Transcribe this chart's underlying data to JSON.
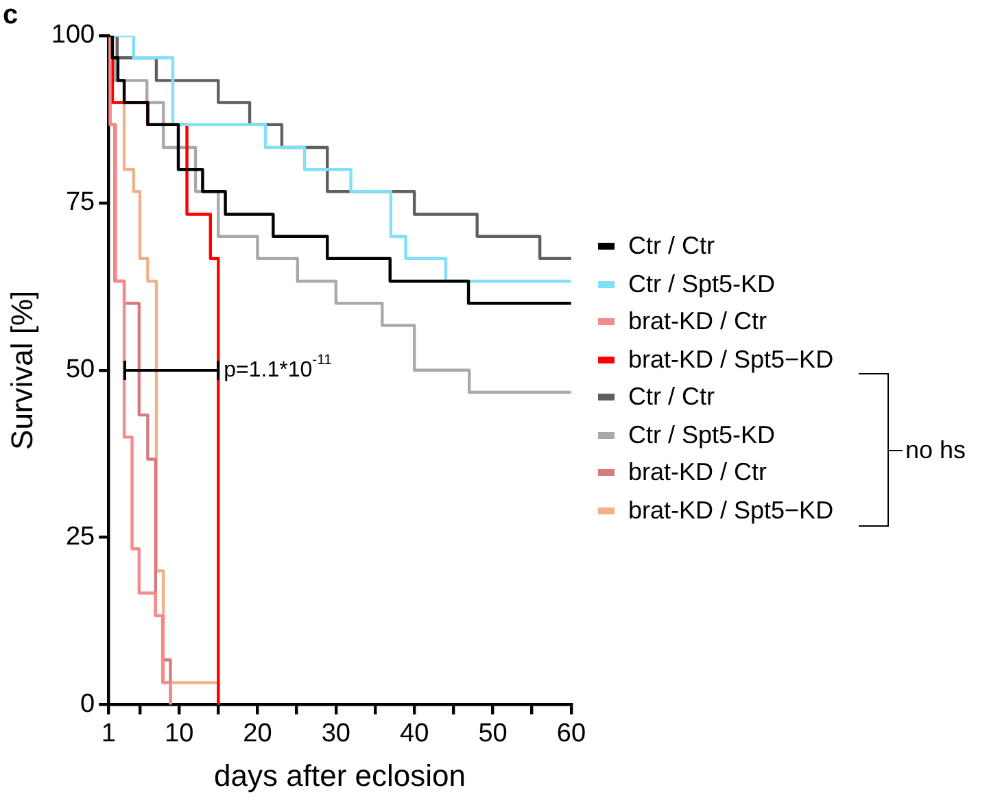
{
  "chart_data": {
    "type": "step",
    "title": "c",
    "xlabel": "days after eclosion",
    "ylabel": "Survival [%]",
    "xlim": [
      1,
      60
    ],
    "xticks": [
      1,
      {
        "value": 5,
        "label": null
      },
      10,
      {
        "value": 15,
        "label": null
      },
      20,
      {
        "value": 25,
        "label": null
      },
      30,
      {
        "value": 35,
        "label": null
      },
      40,
      {
        "value": 45,
        "label": null
      },
      50,
      {
        "value": 55,
        "label": null
      },
      60
    ],
    "ylim": [
      0,
      100
    ],
    "yticks": [
      0,
      25,
      50,
      75,
      100
    ],
    "grid": false,
    "legend": "right",
    "marker": "none",
    "line_style": "solid",
    "annotations": [
      {
        "text": "p=1.1*10$^{-11}$",
        "x": 15,
        "y": 50
      },
      "no hs"
    ],
    "series": [
      {
        "name": "Ctr / Ctr",
        "color": "#000000",
        "x": [
          1,
          1.5,
          2.2,
          3,
          6,
          9.9,
          13,
          15.9,
          22,
          28.9,
          36.9,
          46.9,
          60
        ],
        "values": [
          100,
          96.7,
          93.3,
          90,
          86.7,
          80,
          76.7,
          73.3,
          70,
          66.7,
          63.3,
          60,
          60
        ]
      },
      {
        "name": "Ctr / Spt5-KD",
        "color": "#80e0f8",
        "x": [
          1,
          4.2,
          9.2,
          21,
          26,
          31.9,
          37,
          38.9,
          44,
          60
        ],
        "values": [
          100,
          96.7,
          86.7,
          83.3,
          80,
          76.7,
          70,
          66.7,
          63.3,
          63.3
        ]
      },
      {
        "name": "brat-KD / Ctr",
        "color": "#f48a8a",
        "x": [
          1,
          1.2,
          1.9,
          3,
          4,
          4.9,
          7,
          7.9,
          8.9
        ],
        "values": [
          100,
          86.7,
          63.3,
          40,
          23.3,
          16.7,
          13.3,
          3.3,
          0
        ]
      },
      {
        "name": "brat-KD / Spt5−KD",
        "color": "#ff0000",
        "x": [
          1,
          1.5,
          6,
          11,
          14,
          15
        ],
        "values": [
          100,
          90,
          86.7,
          73.3,
          66.7,
          0
        ]
      },
      {
        "name": "Ctr / Ctr",
        "color": "#5f5f5f",
        "x": [
          1,
          2.1,
          7.1,
          15,
          19,
          23.1,
          28.9,
          40,
          48,
          56,
          60
        ],
        "values": [
          100,
          96.7,
          93.3,
          90,
          86.7,
          83.3,
          76.7,
          73.3,
          70,
          66.7,
          66.7
        ]
      },
      {
        "name": "Ctr / Spt5-KD",
        "color": "#a9a9a9",
        "x": [
          1,
          1.3,
          1.8,
          5.9,
          8,
          12.1,
          15,
          20,
          25.1,
          30,
          35.9,
          40,
          47,
          60
        ],
        "values": [
          100,
          96.7,
          93.3,
          90,
          83.3,
          76.7,
          70,
          66.7,
          63.3,
          60,
          56.7,
          50,
          46.7,
          46.7
        ]
      },
      {
        "name": "brat-KD / Ctr",
        "color": "#d67c80",
        "x": [
          1,
          1.2,
          1.8,
          3,
          4.9,
          6,
          7,
          7.9,
          8.9
        ],
        "values": [
          100,
          86.7,
          63.3,
          60,
          43.3,
          36.7,
          13.3,
          6.7,
          0
        ]
      },
      {
        "name": "brat-KD / Spt5−KD",
        "color": "#f2b08a",
        "x": [
          1,
          1.2,
          3,
          4.2,
          5,
          6,
          7.1,
          8,
          15
        ],
        "values": [
          100,
          93.3,
          80,
          76.7,
          66.7,
          63.3,
          20,
          3.3,
          0
        ]
      }
    ]
  }
}
